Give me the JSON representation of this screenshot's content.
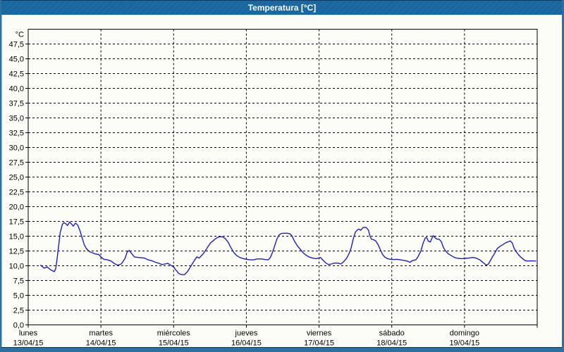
{
  "window": {
    "title": "Temperatura [°C]"
  },
  "colors": {
    "titlebar_bg": "#1d6ba3",
    "window_border": "#2d6f9f",
    "content_bg": "#fbfdf6",
    "grid_color": "#000000",
    "line_color": "#1f1fbf",
    "text_color": "#000000"
  },
  "chart_data": {
    "type": "line",
    "title": "Temperatura [°C]",
    "grid": "dashed",
    "legend_position": "none",
    "y_axis": {
      "unit_label": "°C",
      "min": 0,
      "max": 50,
      "step": 2.5,
      "tick_labels": [
        "0,0",
        "2,5",
        "5,0",
        "7,5",
        "10,0",
        "12,5",
        "15,0",
        "17,5",
        "20,0",
        "22,5",
        "25,0",
        "27,5",
        "30,0",
        "32,5",
        "35,0",
        "37,5",
        "40,0",
        "42,5",
        "45,0",
        "47,5"
      ]
    },
    "x_axis": {
      "days": [
        {
          "name": "lunes",
          "date": "13/04/15"
        },
        {
          "name": "martes",
          "date": "14/04/15"
        },
        {
          "name": "miércoles",
          "date": "15/04/15"
        },
        {
          "name": "jueves",
          "date": "16/04/15"
        },
        {
          "name": "viernes",
          "date": "17/04/15"
        },
        {
          "name": "sábado",
          "date": "18/04/15"
        },
        {
          "name": "domingo",
          "date": "19/04/15"
        }
      ],
      "span_days": 7
    },
    "series": [
      {
        "name": "Temperatura",
        "color": "#1f1fbf",
        "points": [
          [
            0.17,
            10.1
          ],
          [
            0.22,
            9.6
          ],
          [
            0.26,
            9.8
          ],
          [
            0.31,
            9.3
          ],
          [
            0.36,
            9.0
          ],
          [
            0.38,
            9.6
          ],
          [
            0.4,
            11.5
          ],
          [
            0.42,
            13.5
          ],
          [
            0.44,
            15.6
          ],
          [
            0.47,
            17.0
          ],
          [
            0.49,
            17.3
          ],
          [
            0.52,
            17.1
          ],
          [
            0.54,
            16.8
          ],
          [
            0.57,
            17.4
          ],
          [
            0.6,
            17.0
          ],
          [
            0.62,
            16.7
          ],
          [
            0.65,
            17.2
          ],
          [
            0.68,
            16.9
          ],
          [
            0.71,
            16.0
          ],
          [
            0.74,
            14.8
          ],
          [
            0.77,
            13.6
          ],
          [
            0.8,
            12.9
          ],
          [
            0.84,
            12.4
          ],
          [
            0.88,
            12.2
          ],
          [
            0.92,
            12.0
          ],
          [
            0.97,
            11.9
          ],
          [
            1.0,
            11.5
          ],
          [
            1.04,
            11.1
          ],
          [
            1.09,
            11.0
          ],
          [
            1.14,
            10.8
          ],
          [
            1.18,
            10.4
          ],
          [
            1.23,
            10.1
          ],
          [
            1.28,
            10.3
          ],
          [
            1.33,
            11.2
          ],
          [
            1.36,
            12.3
          ],
          [
            1.39,
            12.6
          ],
          [
            1.42,
            12.1
          ],
          [
            1.46,
            11.5
          ],
          [
            1.51,
            11.4
          ],
          [
            1.56,
            11.35
          ],
          [
            1.6,
            11.3
          ],
          [
            1.65,
            11.0
          ],
          [
            1.7,
            10.85
          ],
          [
            1.75,
            10.6
          ],
          [
            1.8,
            10.4
          ],
          [
            1.84,
            10.2
          ],
          [
            1.88,
            10.3
          ],
          [
            1.92,
            10.4
          ],
          [
            1.96,
            10.1
          ],
          [
            2.0,
            9.8
          ],
          [
            2.03,
            9.3
          ],
          [
            2.07,
            8.7
          ],
          [
            2.11,
            8.5
          ],
          [
            2.15,
            8.5
          ],
          [
            2.19,
            9.0
          ],
          [
            2.23,
            9.8
          ],
          [
            2.26,
            10.4
          ],
          [
            2.29,
            11.0
          ],
          [
            2.32,
            11.5
          ],
          [
            2.35,
            11.3
          ],
          [
            2.39,
            11.8
          ],
          [
            2.43,
            12.4
          ],
          [
            2.47,
            13.2
          ],
          [
            2.51,
            13.9
          ],
          [
            2.55,
            14.3
          ],
          [
            2.59,
            14.7
          ],
          [
            2.63,
            14.9
          ],
          [
            2.67,
            14.9
          ],
          [
            2.71,
            14.6
          ],
          [
            2.75,
            14.0
          ],
          [
            2.79,
            13.0
          ],
          [
            2.83,
            12.2
          ],
          [
            2.87,
            11.7
          ],
          [
            2.91,
            11.4
          ],
          [
            2.96,
            11.2
          ],
          [
            3.0,
            11.1
          ],
          [
            3.05,
            11.0
          ],
          [
            3.1,
            11.0
          ],
          [
            3.15,
            11.15
          ],
          [
            3.21,
            11.15
          ],
          [
            3.26,
            11.05
          ],
          [
            3.3,
            11.0
          ],
          [
            3.33,
            11.4
          ],
          [
            3.36,
            12.3
          ],
          [
            3.39,
            13.4
          ],
          [
            3.42,
            14.5
          ],
          [
            3.45,
            15.2
          ],
          [
            3.48,
            15.45
          ],
          [
            3.52,
            15.5
          ],
          [
            3.56,
            15.5
          ],
          [
            3.6,
            15.4
          ],
          [
            3.63,
            15.0
          ],
          [
            3.66,
            14.2
          ],
          [
            3.7,
            13.4
          ],
          [
            3.74,
            12.8
          ],
          [
            3.78,
            12.2
          ],
          [
            3.82,
            11.8
          ],
          [
            3.86,
            11.5
          ],
          [
            3.91,
            11.3
          ],
          [
            3.96,
            11.2
          ],
          [
            4.0,
            11.3
          ],
          [
            4.02,
            11.4
          ],
          [
            4.05,
            11.0
          ],
          [
            4.09,
            10.5
          ],
          [
            4.13,
            10.2
          ],
          [
            4.17,
            10.3
          ],
          [
            4.21,
            10.45
          ],
          [
            4.26,
            10.45
          ],
          [
            4.3,
            10.3
          ],
          [
            4.34,
            10.7
          ],
          [
            4.38,
            11.3
          ],
          [
            4.41,
            12.0
          ],
          [
            4.44,
            13.0
          ],
          [
            4.47,
            14.5
          ],
          [
            4.5,
            15.7
          ],
          [
            4.53,
            16.1
          ],
          [
            4.55,
            16.2
          ],
          [
            4.57,
            16.0
          ],
          [
            4.6,
            16.4
          ],
          [
            4.62,
            16.5
          ],
          [
            4.65,
            16.45
          ],
          [
            4.68,
            16.0
          ],
          [
            4.7,
            15.0
          ],
          [
            4.72,
            14.5
          ],
          [
            4.75,
            14.4
          ],
          [
            4.78,
            14.2
          ],
          [
            4.81,
            13.6
          ],
          [
            4.84,
            12.8
          ],
          [
            4.87,
            12.0
          ],
          [
            4.9,
            11.5
          ],
          [
            4.94,
            11.2
          ],
          [
            4.98,
            11.1
          ],
          [
            5.02,
            11.05
          ],
          [
            5.07,
            11.1
          ],
          [
            5.12,
            11.0
          ],
          [
            5.17,
            10.9
          ],
          [
            5.21,
            10.8
          ],
          [
            5.25,
            10.6
          ],
          [
            5.29,
            10.9
          ],
          [
            5.33,
            11.0
          ],
          [
            5.36,
            11.5
          ],
          [
            5.4,
            12.5
          ],
          [
            5.43,
            13.8
          ],
          [
            5.46,
            14.7
          ],
          [
            5.48,
            14.8
          ],
          [
            5.5,
            14.2
          ],
          [
            5.53,
            14.0
          ],
          [
            5.55,
            14.6
          ],
          [
            5.57,
            15.1
          ],
          [
            5.59,
            14.8
          ],
          [
            5.62,
            14.5
          ],
          [
            5.65,
            14.5
          ],
          [
            5.68,
            14.1
          ],
          [
            5.71,
            13.1
          ],
          [
            5.74,
            12.5
          ],
          [
            5.78,
            12.0
          ],
          [
            5.82,
            11.7
          ],
          [
            5.86,
            11.4
          ],
          [
            5.91,
            11.25
          ],
          [
            5.96,
            11.2
          ],
          [
            6.01,
            11.25
          ],
          [
            6.06,
            11.3
          ],
          [
            6.11,
            11.4
          ],
          [
            6.16,
            11.3
          ],
          [
            6.21,
            11.0
          ],
          [
            6.26,
            10.5
          ],
          [
            6.3,
            10.1
          ],
          [
            6.33,
            10.3
          ],
          [
            6.37,
            11.2
          ],
          [
            6.41,
            12.0
          ],
          [
            6.45,
            12.9
          ],
          [
            6.49,
            13.3
          ],
          [
            6.53,
            13.6
          ],
          [
            6.57,
            13.9
          ],
          [
            6.61,
            14.1
          ],
          [
            6.63,
            14.2
          ],
          [
            6.66,
            13.8
          ],
          [
            6.68,
            13.0
          ],
          [
            6.71,
            12.4
          ],
          [
            6.74,
            11.9
          ],
          [
            6.77,
            11.5
          ],
          [
            6.8,
            11.2
          ],
          [
            6.83,
            10.9
          ],
          [
            6.86,
            10.8
          ],
          [
            6.92,
            10.85
          ],
          [
            6.98,
            10.8
          ]
        ]
      }
    ]
  }
}
